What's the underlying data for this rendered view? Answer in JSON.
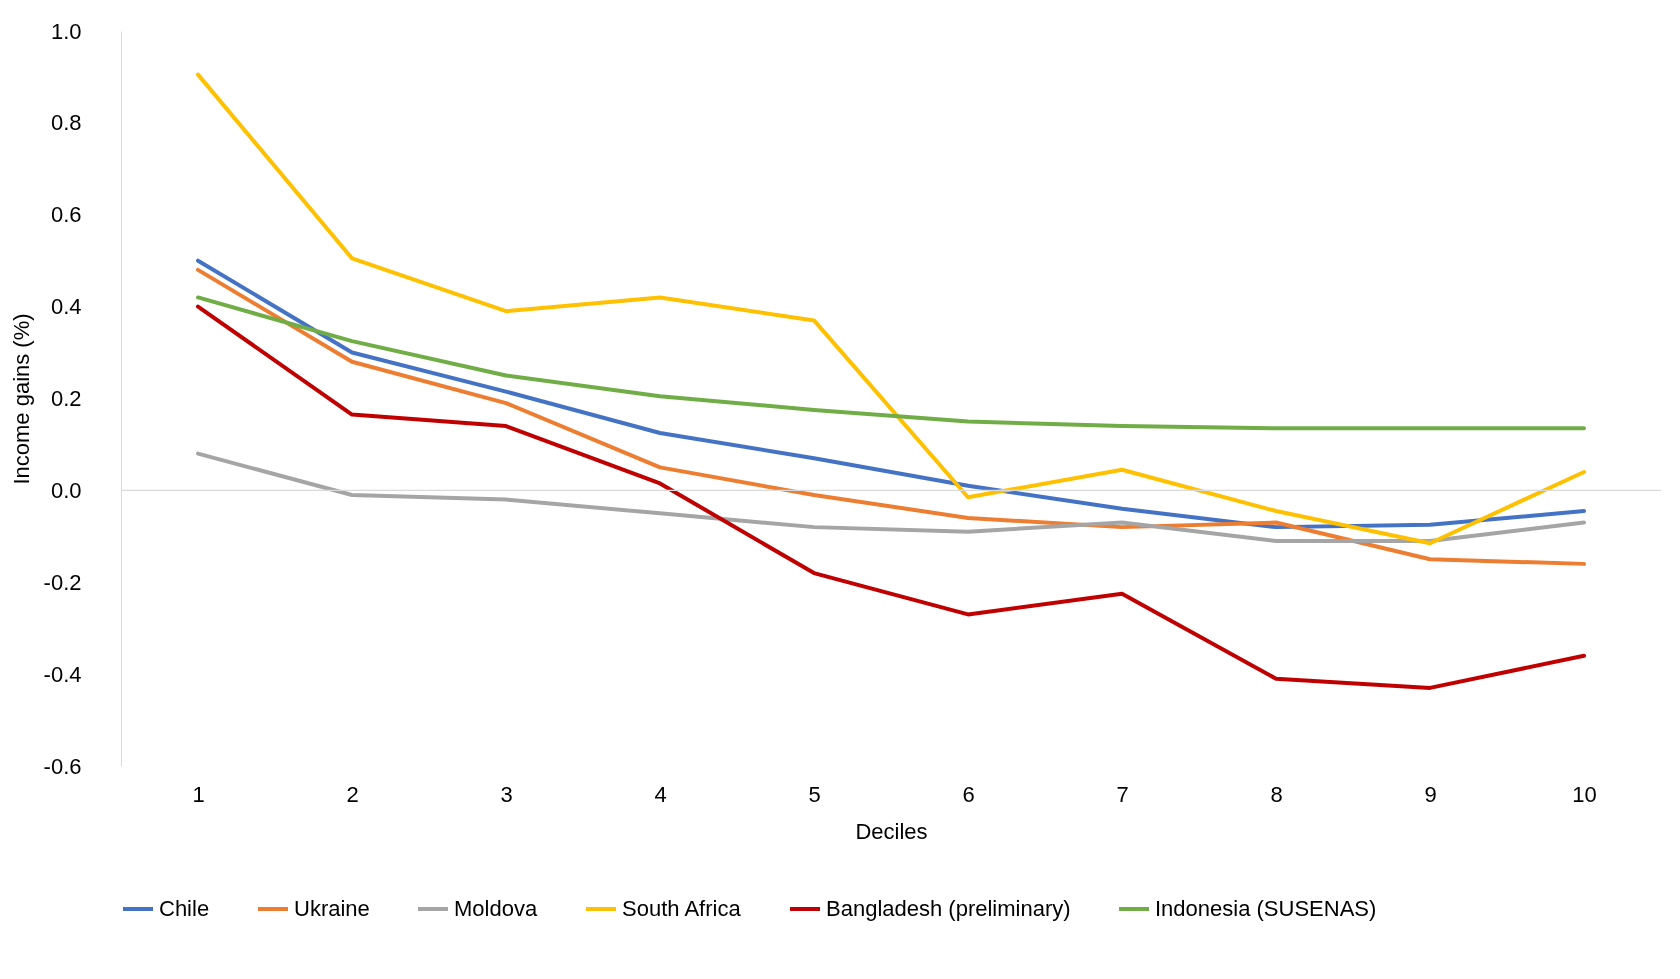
{
  "chart_data": {
    "type": "line",
    "xlabel": "Deciles",
    "ylabel": "Income gains (%)",
    "categories": [
      "1",
      "2",
      "3",
      "4",
      "5",
      "6",
      "7",
      "8",
      "9",
      "10"
    ],
    "ylim": [
      -0.6,
      1.0
    ],
    "yticks": [
      {
        "value": -0.6,
        "label": "-0.6"
      },
      {
        "value": -0.4,
        "label": "-0.4"
      },
      {
        "value": -0.2,
        "label": "-0.2"
      },
      {
        "value": 0,
        "label": "0.0"
      },
      {
        "value": 0.2,
        "label": "0.2"
      },
      {
        "value": 0.4,
        "label": "0.4"
      },
      {
        "value": 0.6,
        "label": "0.6"
      },
      {
        "value": 0.8,
        "label": "0.8"
      },
      {
        "value": 1.0,
        "label": "1.0"
      }
    ],
    "grid": false,
    "legend": "bottom",
    "marker": "none",
    "line_style": "solid",
    "ref_lines": [
      {
        "axis": "y",
        "value": 0,
        "color": "#d9d9d9"
      }
    ],
    "series": [
      {
        "name": "Chile",
        "color": "#4472c4",
        "values": [
          0.5,
          0.3,
          0.215,
          0.125,
          0.07,
          0.01,
          -0.04,
          -0.08,
          -0.075,
          -0.045
        ]
      },
      {
        "name": "Ukraine",
        "color": "#ed7d31",
        "values": [
          0.48,
          0.28,
          0.19,
          0.05,
          -0.01,
          -0.06,
          -0.08,
          -0.07,
          -0.15,
          -0.16
        ]
      },
      {
        "name": "Moldova",
        "color": "#a5a5a5",
        "values": [
          0.08,
          -0.01,
          -0.02,
          -0.05,
          -0.08,
          -0.09,
          -0.07,
          -0.11,
          -0.11,
          -0.07
        ]
      },
      {
        "name": "South Africa",
        "color": "#ffc000",
        "values": [
          0.905,
          0.505,
          0.39,
          0.42,
          0.37,
          -0.015,
          0.045,
          -0.045,
          -0.115,
          0.04
        ]
      },
      {
        "name": "Bangladesh (preliminary)",
        "color": "#c00000",
        "values": [
          0.4,
          0.165,
          0.14,
          0.015,
          -0.18,
          -0.27,
          -0.225,
          -0.41,
          -0.43,
          -0.36
        ]
      },
      {
        "name": "Indonesia (SUSENAS)",
        "color": "#70ad47",
        "values": [
          0.42,
          0.325,
          0.25,
          0.205,
          0.175,
          0.15,
          0.14,
          0.135,
          0.135,
          0.135
        ]
      }
    ]
  }
}
